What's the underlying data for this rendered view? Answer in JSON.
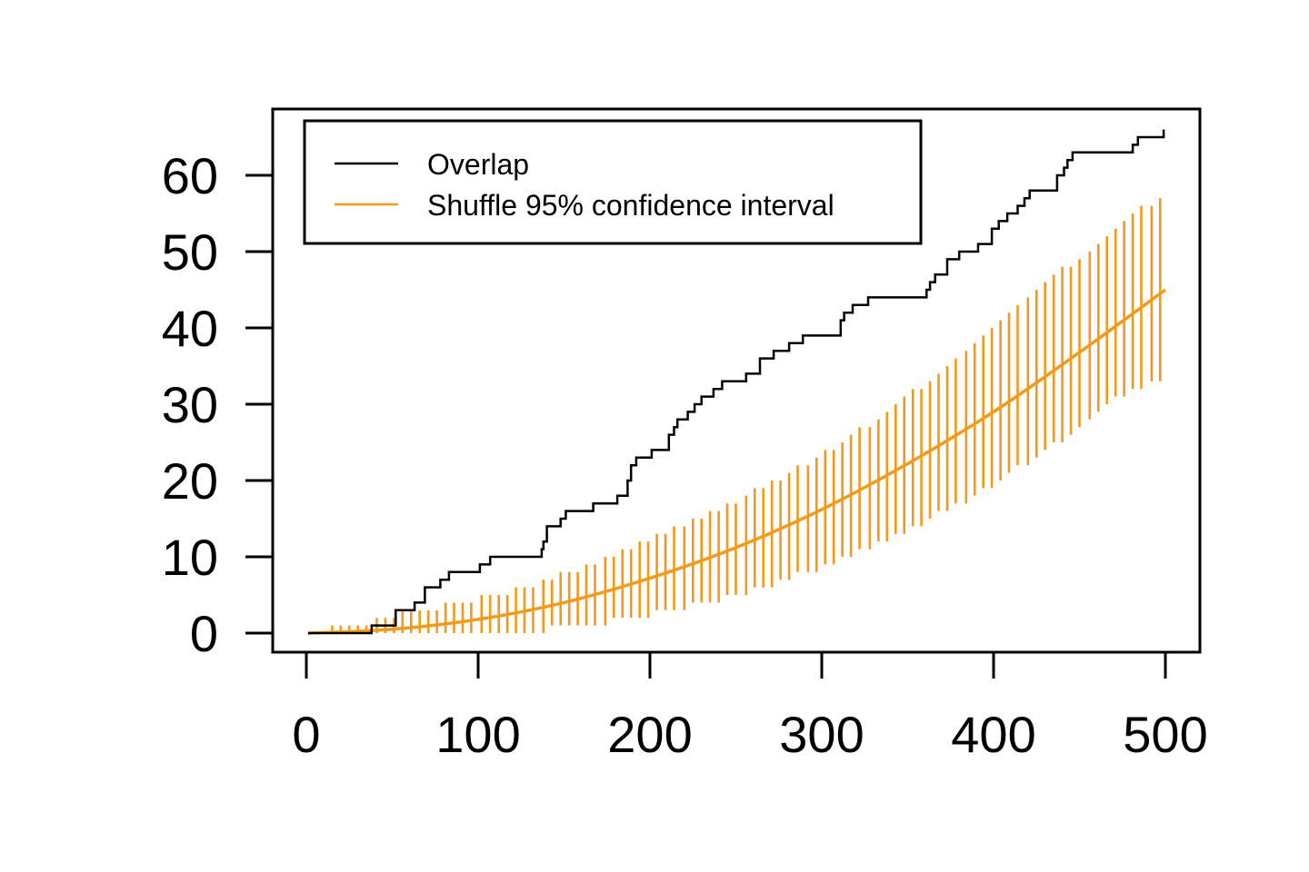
{
  "colors": {
    "overlap": "#000000",
    "shuffle": "#F29A1C",
    "axis": "#000000",
    "background": "#ffffff"
  },
  "legend": {
    "position": "top-left",
    "items": [
      {
        "label": "Overlap",
        "color": "#000000"
      },
      {
        "label": "Shuffle 95% confidence interval",
        "color": "#F29A1C"
      }
    ]
  },
  "chart_data": {
    "type": "line",
    "title": "",
    "xlabel": "",
    "ylabel": "",
    "xlim": [
      0,
      500
    ],
    "ylim": [
      0,
      65
    ],
    "grid": false,
    "x_ticks": [
      0,
      100,
      200,
      300,
      400,
      500
    ],
    "y_ticks": [
      0,
      10,
      20,
      30,
      40,
      50,
      60
    ],
    "series": [
      {
        "name": "Overlap",
        "style": "step",
        "points": [
          [
            1,
            0
          ],
          [
            38,
            0
          ],
          [
            38,
            1
          ],
          [
            52,
            1
          ],
          [
            52,
            3
          ],
          [
            63,
            3
          ],
          [
            63,
            4
          ],
          [
            69,
            4
          ],
          [
            69,
            6
          ],
          [
            78,
            6
          ],
          [
            78,
            7
          ],
          [
            83,
            7
          ],
          [
            83,
            8
          ],
          [
            101,
            8
          ],
          [
            101,
            9
          ],
          [
            107,
            9
          ],
          [
            107,
            10
          ],
          [
            137,
            10
          ],
          [
            137,
            11
          ],
          [
            138,
            11
          ],
          [
            138,
            12
          ],
          [
            140,
            12
          ],
          [
            140,
            14
          ],
          [
            148,
            14
          ],
          [
            148,
            15
          ],
          [
            151,
            15
          ],
          [
            151,
            16
          ],
          [
            167,
            16
          ],
          [
            167,
            17
          ],
          [
            181,
            17
          ],
          [
            181,
            18
          ],
          [
            187,
            18
          ],
          [
            187,
            20
          ],
          [
            189,
            20
          ],
          [
            189,
            22
          ],
          [
            192,
            22
          ],
          [
            192,
            23
          ],
          [
            201,
            23
          ],
          [
            201,
            24
          ],
          [
            211,
            24
          ],
          [
            211,
            26
          ],
          [
            214,
            26
          ],
          [
            214,
            27
          ],
          [
            216,
            27
          ],
          [
            216,
            28
          ],
          [
            222,
            28
          ],
          [
            222,
            29
          ],
          [
            226,
            29
          ],
          [
            226,
            30
          ],
          [
            230,
            30
          ],
          [
            230,
            31
          ],
          [
            237,
            31
          ],
          [
            237,
            32
          ],
          [
            242,
            32
          ],
          [
            242,
            33
          ],
          [
            256,
            33
          ],
          [
            256,
            34
          ],
          [
            264,
            34
          ],
          [
            264,
            36
          ],
          [
            272,
            36
          ],
          [
            272,
            37
          ],
          [
            281,
            37
          ],
          [
            281,
            38
          ],
          [
            289,
            38
          ],
          [
            289,
            39
          ],
          [
            311,
            39
          ],
          [
            311,
            41
          ],
          [
            313,
            41
          ],
          [
            313,
            42
          ],
          [
            318,
            42
          ],
          [
            318,
            43
          ],
          [
            327,
            43
          ],
          [
            327,
            44
          ],
          [
            361,
            44
          ],
          [
            361,
            45
          ],
          [
            363,
            45
          ],
          [
            363,
            46
          ],
          [
            366,
            46
          ],
          [
            366,
            47
          ],
          [
            373,
            47
          ],
          [
            373,
            49
          ],
          [
            380,
            49
          ],
          [
            380,
            50
          ],
          [
            391,
            50
          ],
          [
            391,
            51
          ],
          [
            399,
            51
          ],
          [
            399,
            53
          ],
          [
            403,
            53
          ],
          [
            403,
            54
          ],
          [
            408,
            54
          ],
          [
            408,
            55
          ],
          [
            414,
            55
          ],
          [
            414,
            56
          ],
          [
            418,
            56
          ],
          [
            418,
            57
          ],
          [
            421,
            57
          ],
          [
            421,
            58
          ],
          [
            437,
            58
          ],
          [
            437,
            60
          ],
          [
            441,
            60
          ],
          [
            441,
            61
          ],
          [
            443,
            61
          ],
          [
            443,
            62
          ],
          [
            446,
            62
          ],
          [
            446,
            63
          ],
          [
            481,
            63
          ],
          [
            481,
            64
          ],
          [
            484,
            64
          ],
          [
            484,
            65
          ],
          [
            499,
            65
          ],
          [
            499,
            66
          ]
        ]
      },
      {
        "name": "Shuffle 95% confidence interval",
        "style": "line-with-intervals",
        "mean_curve": [
          [
            1,
            0
          ],
          [
            50,
            0.5
          ],
          [
            100,
            1.8
          ],
          [
            150,
            4.0
          ],
          [
            200,
            7.2
          ],
          [
            250,
            11.2
          ],
          [
            300,
            16.2
          ],
          [
            350,
            22.2
          ],
          [
            400,
            29.0
          ],
          [
            450,
            36.8
          ],
          [
            500,
            45.0
          ]
        ],
        "intervals": [
          [
            15,
            0,
            1
          ],
          [
            20,
            0,
            1
          ],
          [
            25,
            0,
            1
          ],
          [
            30,
            0,
            1
          ],
          [
            35,
            0,
            1
          ],
          [
            41,
            0,
            2
          ],
          [
            46,
            0,
            2
          ],
          [
            51,
            0,
            2
          ],
          [
            56,
            0,
            3
          ],
          [
            61,
            0,
            3
          ],
          [
            66,
            0,
            3
          ],
          [
            71,
            0,
            3
          ],
          [
            76,
            0,
            3
          ],
          [
            81,
            0,
            4
          ],
          [
            86,
            0,
            4
          ],
          [
            91,
            0,
            4
          ],
          [
            96,
            0,
            4
          ],
          [
            102,
            0,
            5
          ],
          [
            107,
            0,
            5
          ],
          [
            112,
            0,
            5
          ],
          [
            117,
            0,
            5
          ],
          [
            122,
            0,
            6
          ],
          [
            127,
            0,
            6
          ],
          [
            132,
            0,
            6
          ],
          [
            138,
            0,
            7
          ],
          [
            143,
            1,
            7
          ],
          [
            148,
            1,
            8
          ],
          [
            153,
            1,
            8
          ],
          [
            158,
            1,
            8
          ],
          [
            163,
            1,
            9
          ],
          [
            168,
            1,
            9
          ],
          [
            174,
            1,
            10
          ],
          [
            179,
            2,
            10
          ],
          [
            184,
            2,
            11
          ],
          [
            189,
            2,
            11
          ],
          [
            194,
            2,
            12
          ],
          [
            199,
            2,
            12
          ],
          [
            204,
            3,
            13
          ],
          [
            209,
            3,
            13
          ],
          [
            214,
            3,
            14
          ],
          [
            220,
            3,
            14
          ],
          [
            225,
            4,
            15
          ],
          [
            230,
            4,
            15
          ],
          [
            235,
            4,
            16
          ],
          [
            240,
            4,
            16
          ],
          [
            245,
            5,
            17
          ],
          [
            250,
            5,
            17
          ],
          [
            256,
            5,
            18
          ],
          [
            261,
            6,
            19
          ],
          [
            266,
            6,
            19
          ],
          [
            271,
            6,
            20
          ],
          [
            276,
            7,
            20
          ],
          [
            281,
            7,
            21
          ],
          [
            286,
            8,
            22
          ],
          [
            292,
            8,
            22
          ],
          [
            297,
            8,
            23
          ],
          [
            302,
            9,
            24
          ],
          [
            307,
            9,
            24
          ],
          [
            312,
            10,
            25
          ],
          [
            317,
            10,
            26
          ],
          [
            322,
            11,
            27
          ],
          [
            328,
            11,
            27
          ],
          [
            333,
            12,
            28
          ],
          [
            338,
            12,
            29
          ],
          [
            343,
            13,
            30
          ],
          [
            348,
            13,
            31
          ],
          [
            353,
            14,
            32
          ],
          [
            358,
            14,
            32
          ],
          [
            363,
            15,
            33
          ],
          [
            368,
            16,
            34
          ],
          [
            373,
            16,
            35
          ],
          [
            378,
            17,
            36
          ],
          [
            384,
            17,
            37
          ],
          [
            389,
            18,
            38
          ],
          [
            394,
            19,
            39
          ],
          [
            399,
            19,
            40
          ],
          [
            404,
            20,
            41
          ],
          [
            409,
            21,
            42
          ],
          [
            414,
            22,
            43
          ],
          [
            420,
            22,
            44
          ],
          [
            425,
            23,
            45
          ],
          [
            430,
            24,
            46
          ],
          [
            435,
            25,
            47
          ],
          [
            440,
            25,
            48
          ],
          [
            445,
            26,
            48
          ],
          [
            450,
            27,
            49
          ],
          [
            456,
            28,
            50
          ],
          [
            461,
            29,
            51
          ],
          [
            466,
            30,
            52
          ],
          [
            471,
            31,
            53
          ],
          [
            476,
            31,
            54
          ],
          [
            481,
            32,
            55
          ],
          [
            486,
            32,
            56
          ],
          [
            492,
            33,
            56
          ],
          [
            497,
            33,
            57
          ]
        ]
      }
    ]
  }
}
